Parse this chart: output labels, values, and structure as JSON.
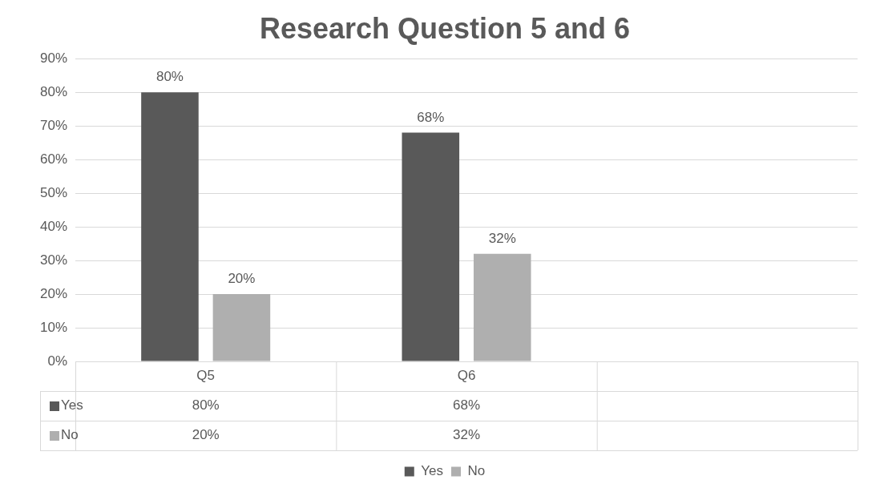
{
  "chart_data": {
    "type": "bar",
    "title": "Research Question 5 and 6",
    "categories": [
      "Q5",
      "Q6",
      null
    ],
    "series": [
      {
        "name": "Yes",
        "color": "#595959",
        "values": [
          80,
          68,
          null
        ],
        "value_labels": [
          "80%",
          "68%",
          null
        ]
      },
      {
        "name": "No",
        "color": "#afafaf",
        "values": [
          20,
          32,
          null
        ],
        "value_labels": [
          "20%",
          "32%",
          null
        ]
      }
    ],
    "ylim": [
      0,
      90
    ],
    "yticks": [
      {
        "value": 0,
        "label": "0%"
      },
      {
        "value": 10,
        "label": "10%"
      },
      {
        "value": 20,
        "label": "20%"
      },
      {
        "value": 30,
        "label": "30%"
      },
      {
        "value": 40,
        "label": "40%"
      },
      {
        "value": 50,
        "label": "50%"
      },
      {
        "value": 60,
        "label": "60%"
      },
      {
        "value": 70,
        "label": "70%"
      },
      {
        "value": 80,
        "label": "80%"
      },
      {
        "value": 90,
        "label": "90%"
      }
    ],
    "grid": "y",
    "legend": "bottom"
  }
}
